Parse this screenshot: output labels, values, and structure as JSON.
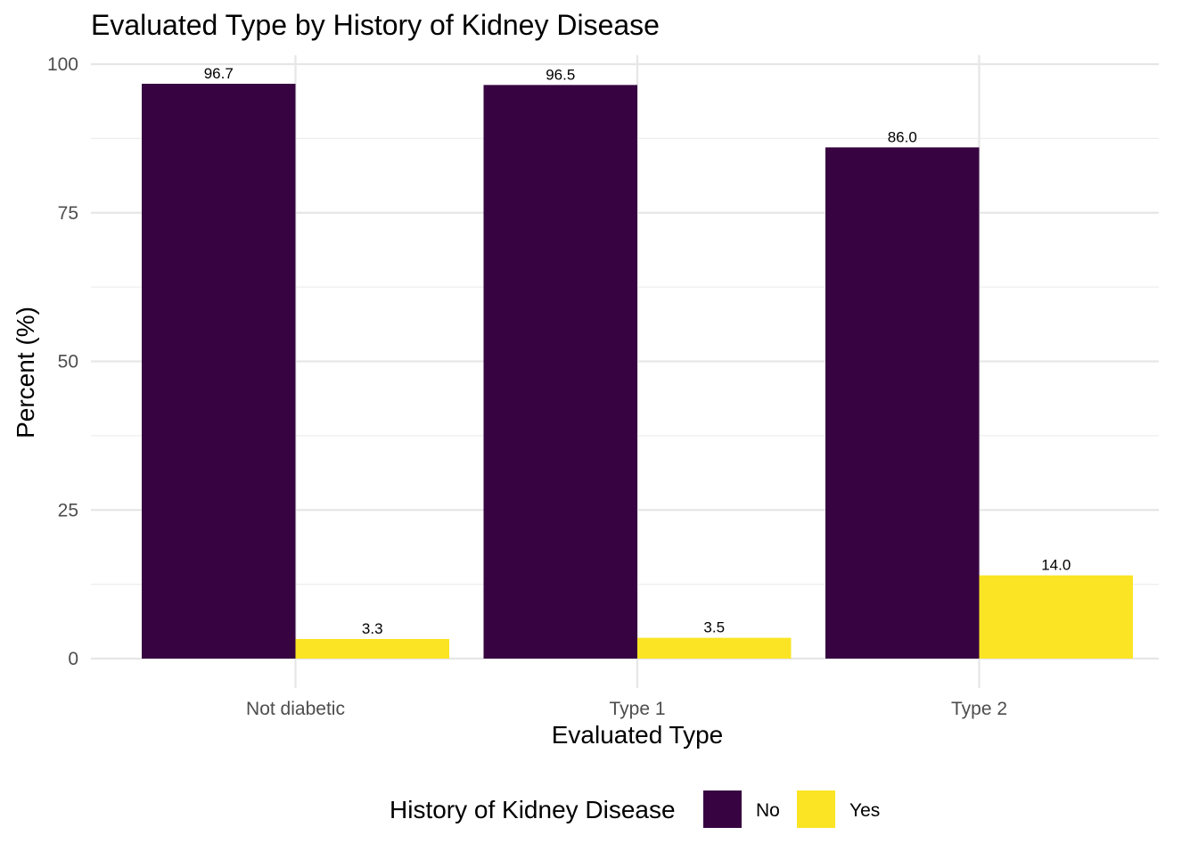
{
  "chart_data": {
    "type": "bar",
    "title": "Evaluated Type by History of Kidney Disease",
    "xlabel": "Evaluated Type",
    "ylabel": "Percent (%)",
    "categories": [
      "Not diabetic",
      "Type 1",
      "Type 2"
    ],
    "series": [
      {
        "name": "No",
        "color": "#370441",
        "values": [
          96.7,
          96.5,
          86.0
        ],
        "labels": [
          "96.7",
          "96.5",
          "86.0"
        ]
      },
      {
        "name": "Yes",
        "color": "#FBE424",
        "values": [
          3.3,
          3.5,
          14.0
        ],
        "labels": [
          "3.3",
          "3.5",
          "14.0"
        ]
      }
    ],
    "ylim": [
      0,
      100
    ],
    "yticks": [
      0,
      25,
      50,
      75,
      100
    ],
    "grid": true,
    "legend": {
      "title": "History of Kidney Disease",
      "position": "bottom"
    }
  }
}
